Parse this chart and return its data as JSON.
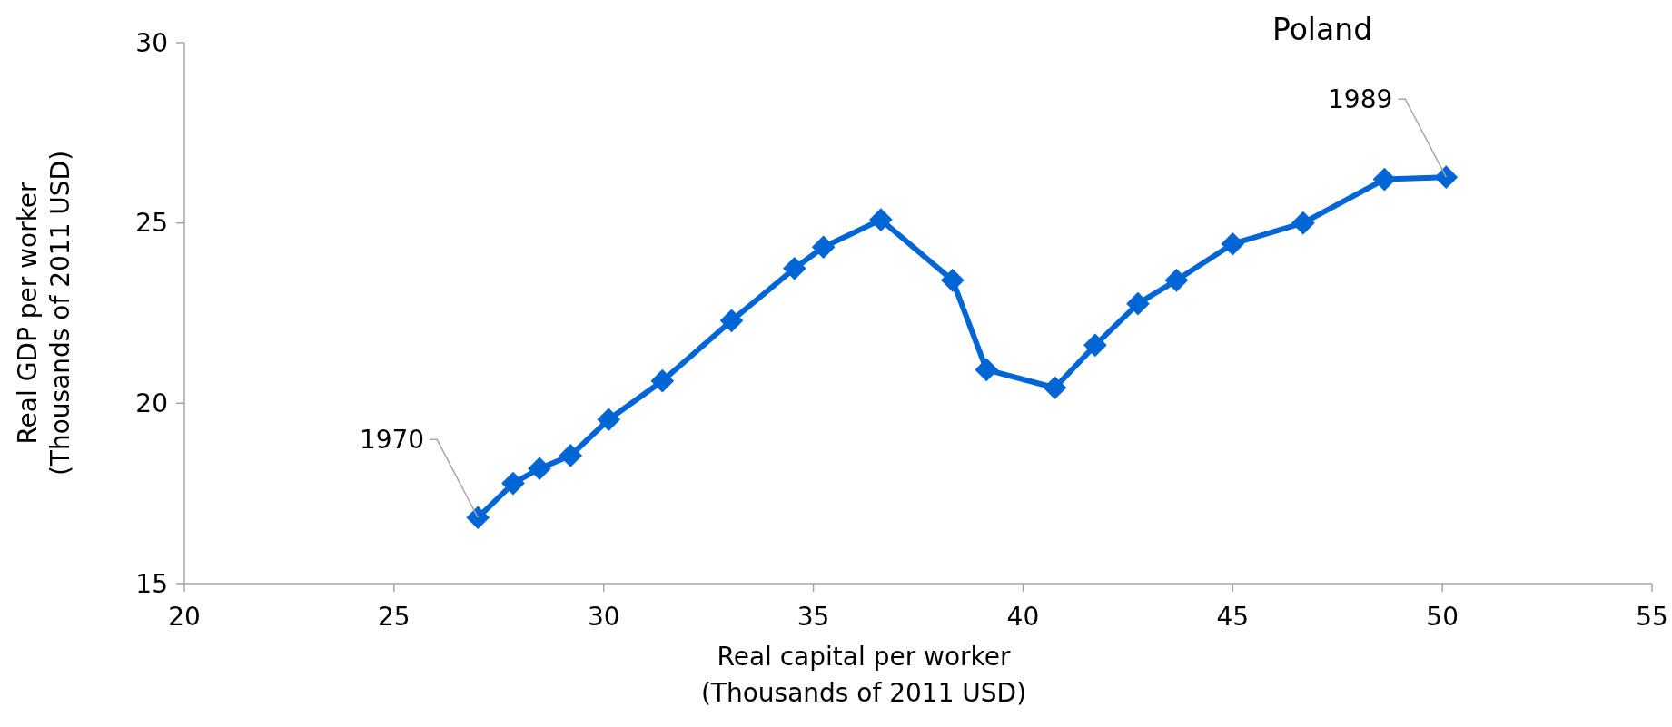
{
  "chart_data": {
    "type": "line",
    "title": "Poland",
    "xlabel": "Real capital per worker\n(Thousands of 2011 USD)",
    "ylabel": "Real GDP per worker\n(Thousands of 2011 USD)",
    "xlim": [
      20,
      55
    ],
    "xticks": [
      20,
      25,
      30,
      35,
      40,
      45,
      50,
      55
    ],
    "ylim": [
      15,
      30
    ],
    "yticks": [
      15,
      20,
      25,
      30
    ],
    "grid": false,
    "marker": "diamond",
    "line_style": "solid",
    "series": [
      {
        "color": "#0066d6",
        "x": [
          27.0,
          27.84,
          28.47,
          29.21,
          30.12,
          31.4,
          33.05,
          34.55,
          35.24,
          36.61,
          38.32,
          39.13,
          40.76,
          41.72,
          42.74,
          43.66,
          45.0,
          46.68,
          48.62,
          50.09
        ],
        "values": [
          16.83,
          17.78,
          18.19,
          18.55,
          19.55,
          20.62,
          22.29,
          23.74,
          24.33,
          25.09,
          23.41,
          20.93,
          20.43,
          21.61,
          22.76,
          23.41,
          24.42,
          25.0,
          26.21,
          26.27
        ]
      }
    ],
    "annotations": [
      {
        "text": "1970",
        "x": 27.0,
        "y": 16.83
      },
      {
        "text": "1989",
        "x": 50.09,
        "y": 26.27
      }
    ]
  }
}
